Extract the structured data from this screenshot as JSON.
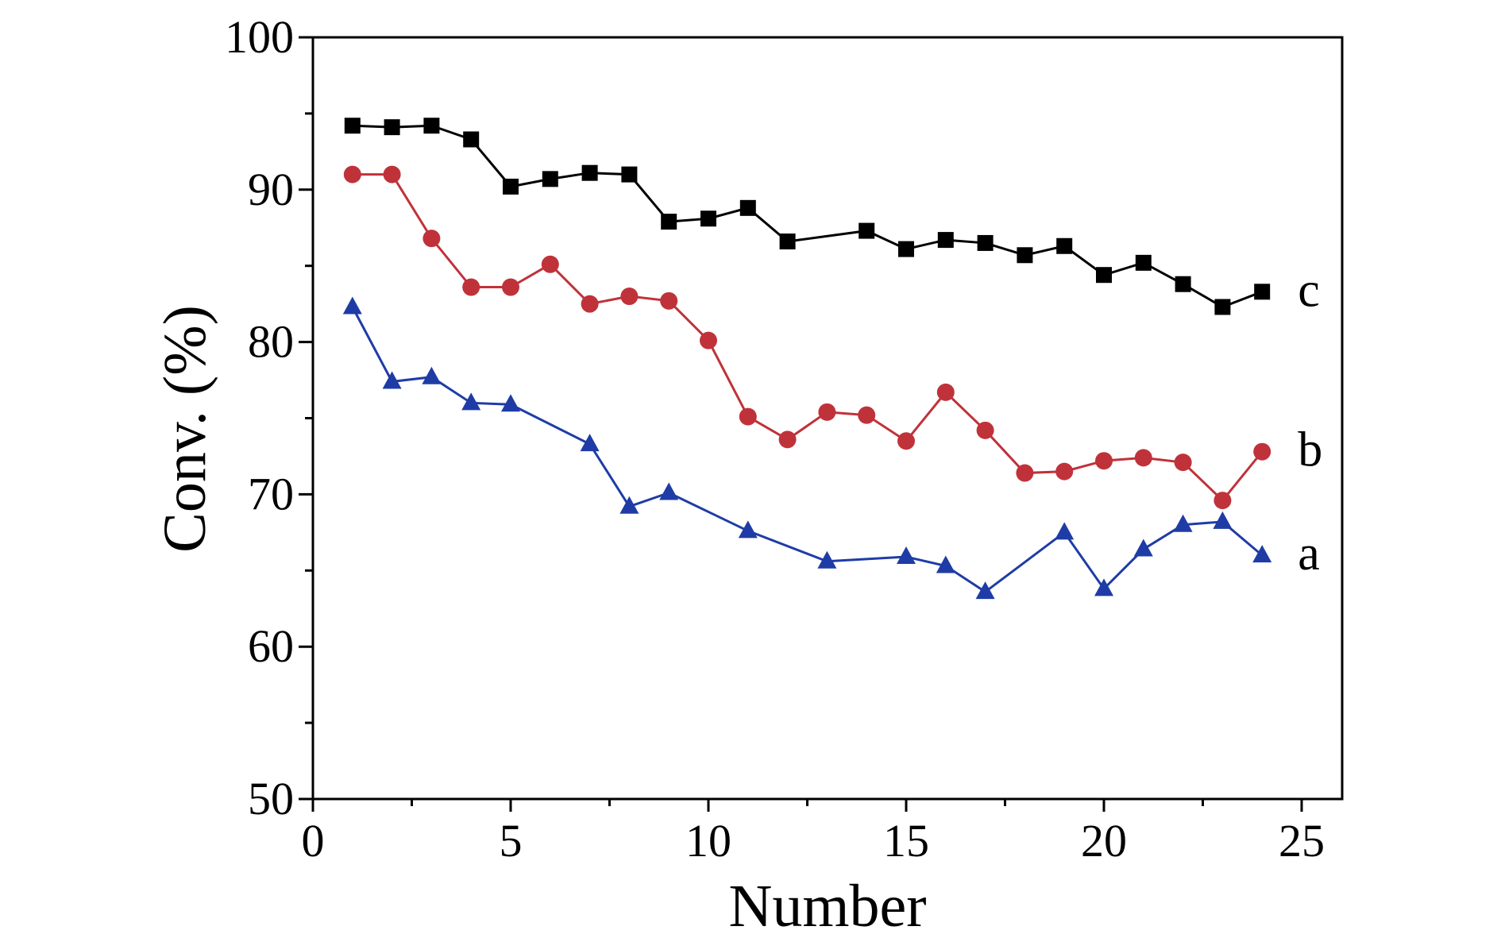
{
  "chart_data": {
    "type": "line",
    "title": "",
    "xlabel": "Number",
    "ylabel": "Conv. (%)",
    "xlim": [
      0,
      26
    ],
    "ylim": [
      50,
      100
    ],
    "xticks": [
      0,
      5,
      10,
      15,
      20,
      25
    ],
    "yticks": [
      50,
      60,
      70,
      80,
      90,
      100
    ],
    "xtick_labels": [
      "0",
      "5",
      "10",
      "15",
      "20",
      "25"
    ],
    "ytick_labels": [
      "50",
      "60",
      "70",
      "80",
      "90",
      "100"
    ],
    "grid": false,
    "legend": "inline labels at right end of each series",
    "series": [
      {
        "name": "c",
        "color": "#000000",
        "marker": "square",
        "x": [
          1,
          2,
          3,
          4,
          5,
          6,
          7,
          8,
          9,
          10,
          11,
          12,
          14,
          15,
          16,
          17,
          18,
          19,
          20,
          21,
          22,
          23,
          24
        ],
        "y": [
          94.2,
          94.1,
          94.2,
          93.3,
          90.2,
          90.7,
          91.1,
          91.0,
          87.9,
          88.1,
          88.8,
          86.6,
          87.3,
          86.1,
          86.7,
          86.5,
          85.7,
          86.3,
          84.4,
          85.2,
          83.8,
          82.3,
          83.3
        ]
      },
      {
        "name": "b",
        "color": "#c0323a",
        "marker": "circle",
        "x": [
          1,
          2,
          3,
          4,
          5,
          6,
          7,
          8,
          9,
          10,
          11,
          12,
          13,
          14,
          15,
          16,
          17,
          18,
          19,
          20,
          21,
          22,
          23,
          24
        ],
        "y": [
          91.0,
          91.0,
          86.8,
          83.6,
          83.6,
          85.1,
          82.5,
          83.0,
          82.7,
          80.1,
          75.1,
          73.6,
          75.4,
          75.2,
          73.5,
          76.7,
          74.2,
          71.4,
          71.5,
          72.2,
          72.4,
          72.1,
          69.6,
          72.8
        ]
      },
      {
        "name": "a",
        "color": "#1f3ca6",
        "marker": "triangle",
        "x": [
          1,
          2,
          3,
          4,
          5,
          7,
          8,
          9,
          11,
          13,
          15,
          16,
          17,
          19,
          20,
          21,
          22,
          23,
          24
        ],
        "y": [
          82.3,
          77.4,
          77.7,
          76.0,
          75.9,
          73.3,
          69.2,
          70.1,
          67.6,
          65.6,
          65.9,
          65.3,
          63.6,
          67.5,
          63.8,
          66.4,
          68.0,
          68.2,
          66.0
        ]
      }
    ]
  }
}
